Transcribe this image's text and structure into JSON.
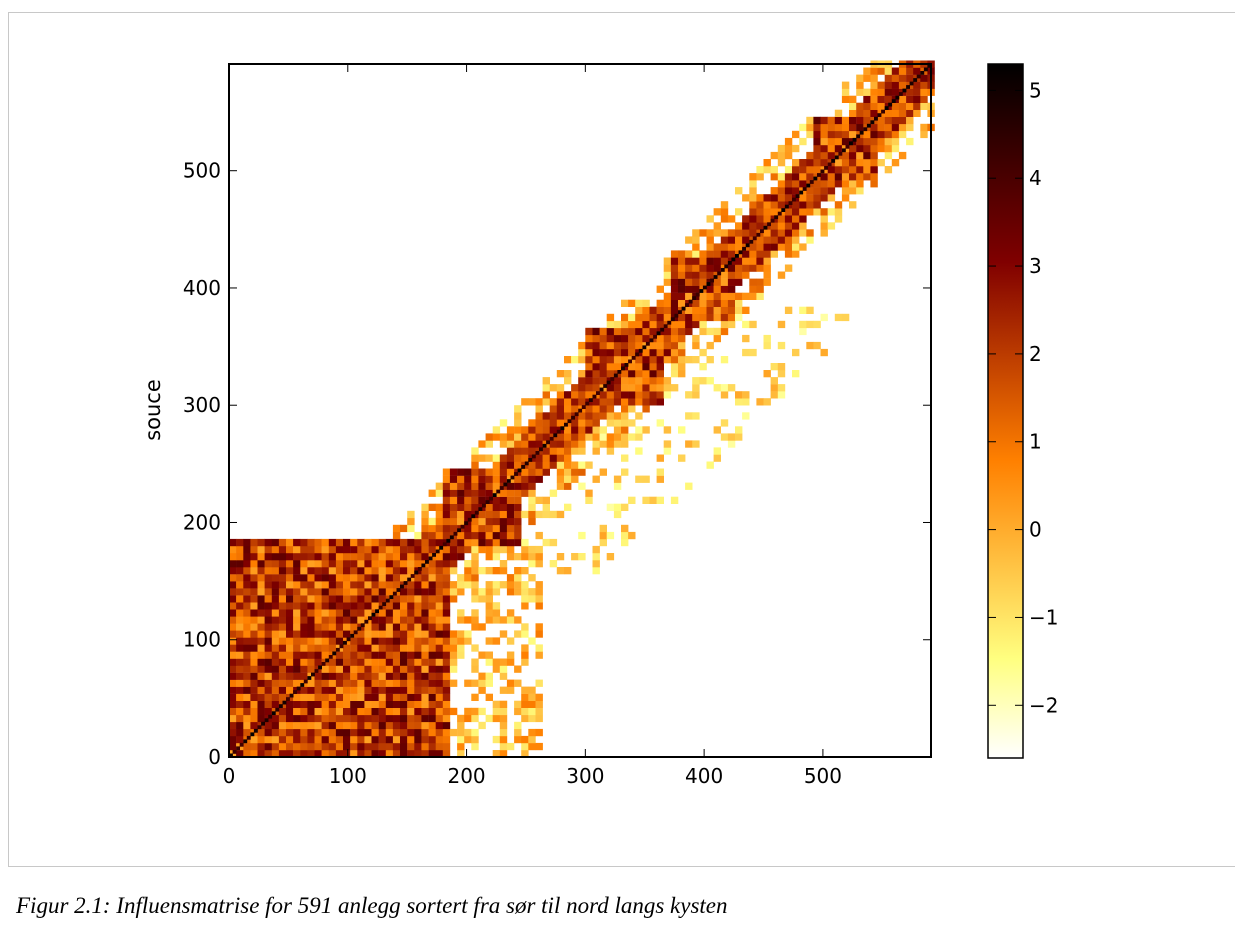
{
  "caption": "Figur 2.1: Influensmatrise for 591 anlegg sortert fra sør til nord langs kysten",
  "chart_data": {
    "type": "heatmap",
    "title": "",
    "xlabel": "",
    "ylabel": "souce",
    "matrix_size": 591,
    "xlim": [
      0,
      591
    ],
    "ylim": [
      0,
      591
    ],
    "x_ticks": [
      0,
      100,
      200,
      300,
      400,
      500
    ],
    "y_ticks": [
      0,
      100,
      200,
      300,
      400,
      500
    ],
    "x_tick_labels": [
      "0",
      "100",
      "200",
      "300",
      "400",
      "500"
    ],
    "y_tick_labels": [
      "0",
      "100",
      "200",
      "300",
      "400",
      "500"
    ],
    "colorbar": {
      "min": -2.6,
      "max": 5.3,
      "ticks": [
        5,
        4,
        3,
        2,
        1,
        0,
        -1,
        -2
      ],
      "tick_labels": [
        "5",
        "4",
        "3",
        "2",
        "1",
        "0",
        "−1",
        "−2"
      ],
      "colormap": "afmhot_r",
      "colors": [
        "#ffffff",
        "#ffff80",
        "#ffbf40",
        "#ff8000",
        "#c04000",
        "#800000",
        "#400000",
        "#000000"
      ]
    },
    "description_blocks": [
      {
        "x": [
          0,
          180
        ],
        "y": [
          0,
          180
        ],
        "level": "high"
      },
      {
        "x": [
          180,
          240
        ],
        "y": [
          180,
          240
        ],
        "level": "high"
      },
      {
        "x": [
          300,
          360
        ],
        "y": [
          300,
          360
        ],
        "level": "high"
      },
      {
        "x": [
          370,
          420
        ],
        "y": [
          370,
          420
        ],
        "level": "high"
      },
      {
        "x": [
          490,
          540
        ],
        "y": [
          490,
          540
        ],
        "level": "high"
      }
    ],
    "grid": false,
    "legend": "colorbar-right"
  }
}
